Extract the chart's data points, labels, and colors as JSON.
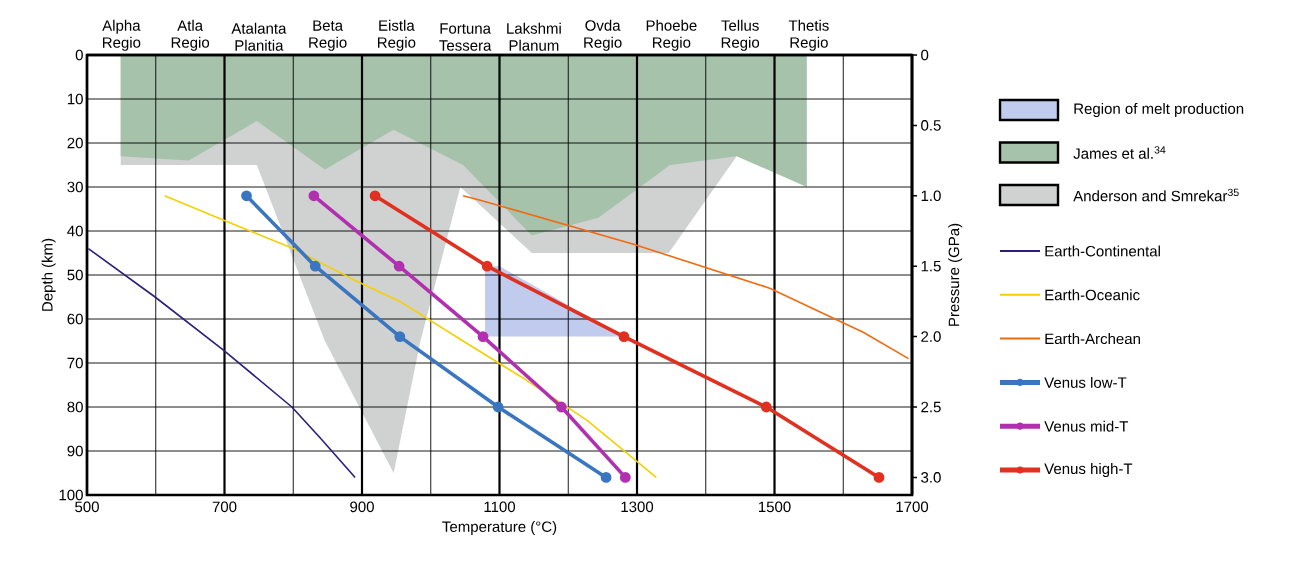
{
  "chart_data": {
    "type": "line",
    "xlabel": "Temperature (°C)",
    "ylabel": "Depth (km)",
    "y2label": "Pressure (GPa)",
    "xlim": [
      500,
      1700
    ],
    "xticks": [
      500,
      {
        "value": 600,
        "label": null
      },
      700,
      {
        "value": 800,
        "label": null
      },
      900,
      {
        "value": 1000,
        "label": null
      },
      1100,
      {
        "value": 1200,
        "label": null
      },
      1300,
      {
        "value": 1400,
        "label": null
      },
      1500,
      {
        "value": 1600,
        "label": null
      },
      1700
    ],
    "ylim": [
      100,
      0
    ],
    "yticks": [
      0,
      10,
      20,
      30,
      40,
      50,
      60,
      70,
      80,
      90,
      100
    ],
    "y2lim": [
      3.125,
      0
    ],
    "y2ticks": [
      0,
      0.5,
      {
        "value": 1,
        "label": "1.0"
      },
      1.5,
      {
        "value": 2,
        "label": "2.0"
      },
      2.5,
      {
        "value": 3,
        "label": "3.0"
      }
    ],
    "annotations": [
      "Alpha Regio",
      "Atla Regio",
      "Atalanta Planitia",
      "Beta Regio",
      "Eistla Regio",
      "Fortuna Tessera",
      "Lakshmi Planum",
      "Ovda Regio",
      "Phoebe Regio",
      "Tellus Regio",
      "Thetis Regio"
    ],
    "grid": true,
    "legend": "right",
    "series": [
      {
        "name": "Region of melt production",
        "type": "area",
        "color": "#c0cbee",
        "x": [
          1079,
          1079,
          1100,
          1280
        ],
        "values": [
          64,
          48,
          48,
          64
        ]
      },
      {
        "name": "James et al.$^{34}$",
        "type": "area",
        "color": "#a6c2ab",
        "x": [
          549,
          549,
          648,
          747,
          846,
          946,
          1047,
          1147,
          1244,
          1348,
          1445,
          1547,
          1547
        ],
        "values": [
          0,
          23,
          24,
          15,
          26,
          17,
          25,
          41,
          37,
          25,
          23,
          30,
          0
        ]
      },
      {
        "name": "Anderson and Smrekar$^{35}$",
        "type": "area",
        "color": "#d0d1d1",
        "x": [
          549,
          549,
          747,
          846,
          946,
          985,
          1043,
          1147,
          1246,
          1346,
          1445,
          1445
        ],
        "values": [
          0,
          25,
          25,
          65,
          95,
          65,
          30,
          45,
          null,
          45,
          23,
          0
        ]
      },
      {
        "name": "Earth-Continental",
        "color": "#2b1f7a",
        "marker": "none",
        "x": [
          502,
          599,
          698,
          798,
          839,
          890
        ],
        "values": [
          44,
          55,
          67,
          80,
          87,
          96
        ]
      },
      {
        "name": "Earth-Oceanic",
        "color": "#f5d000",
        "marker": "none",
        "x": [
          613,
          698,
          800,
          887,
          955,
          1047,
          1130,
          1227,
          1328
        ],
        "values": [
          32,
          37.5,
          44,
          51,
          56,
          65,
          73,
          83,
          96
        ]
      },
      {
        "name": "Earth-Archean",
        "color": "#f26a10",
        "marker": "none",
        "x": [
          1047,
          1072,
          1295,
          1493,
          1629,
          1695
        ],
        "values": [
          32,
          33,
          43,
          53,
          63,
          69
        ]
      },
      {
        "name": "Venus low-T",
        "color": "#3a75c0",
        "marker": "circle",
        "x": [
          732,
          832,
          955,
          1098,
          1255
        ],
        "values": [
          32,
          48,
          64,
          80,
          96
        ]
      },
      {
        "name": "Venus mid-T",
        "color": "#b030b0",
        "marker": "circle",
        "x": [
          830,
          954,
          1076,
          1190,
          1283
        ],
        "values": [
          32,
          48,
          64,
          80,
          96
        ]
      },
      {
        "name": "Venus high-T",
        "color": "#e03020",
        "marker": "circle",
        "x": [
          919,
          1082,
          1281,
          1488,
          1652
        ],
        "values": [
          32,
          48,
          64,
          80,
          96
        ]
      }
    ]
  }
}
